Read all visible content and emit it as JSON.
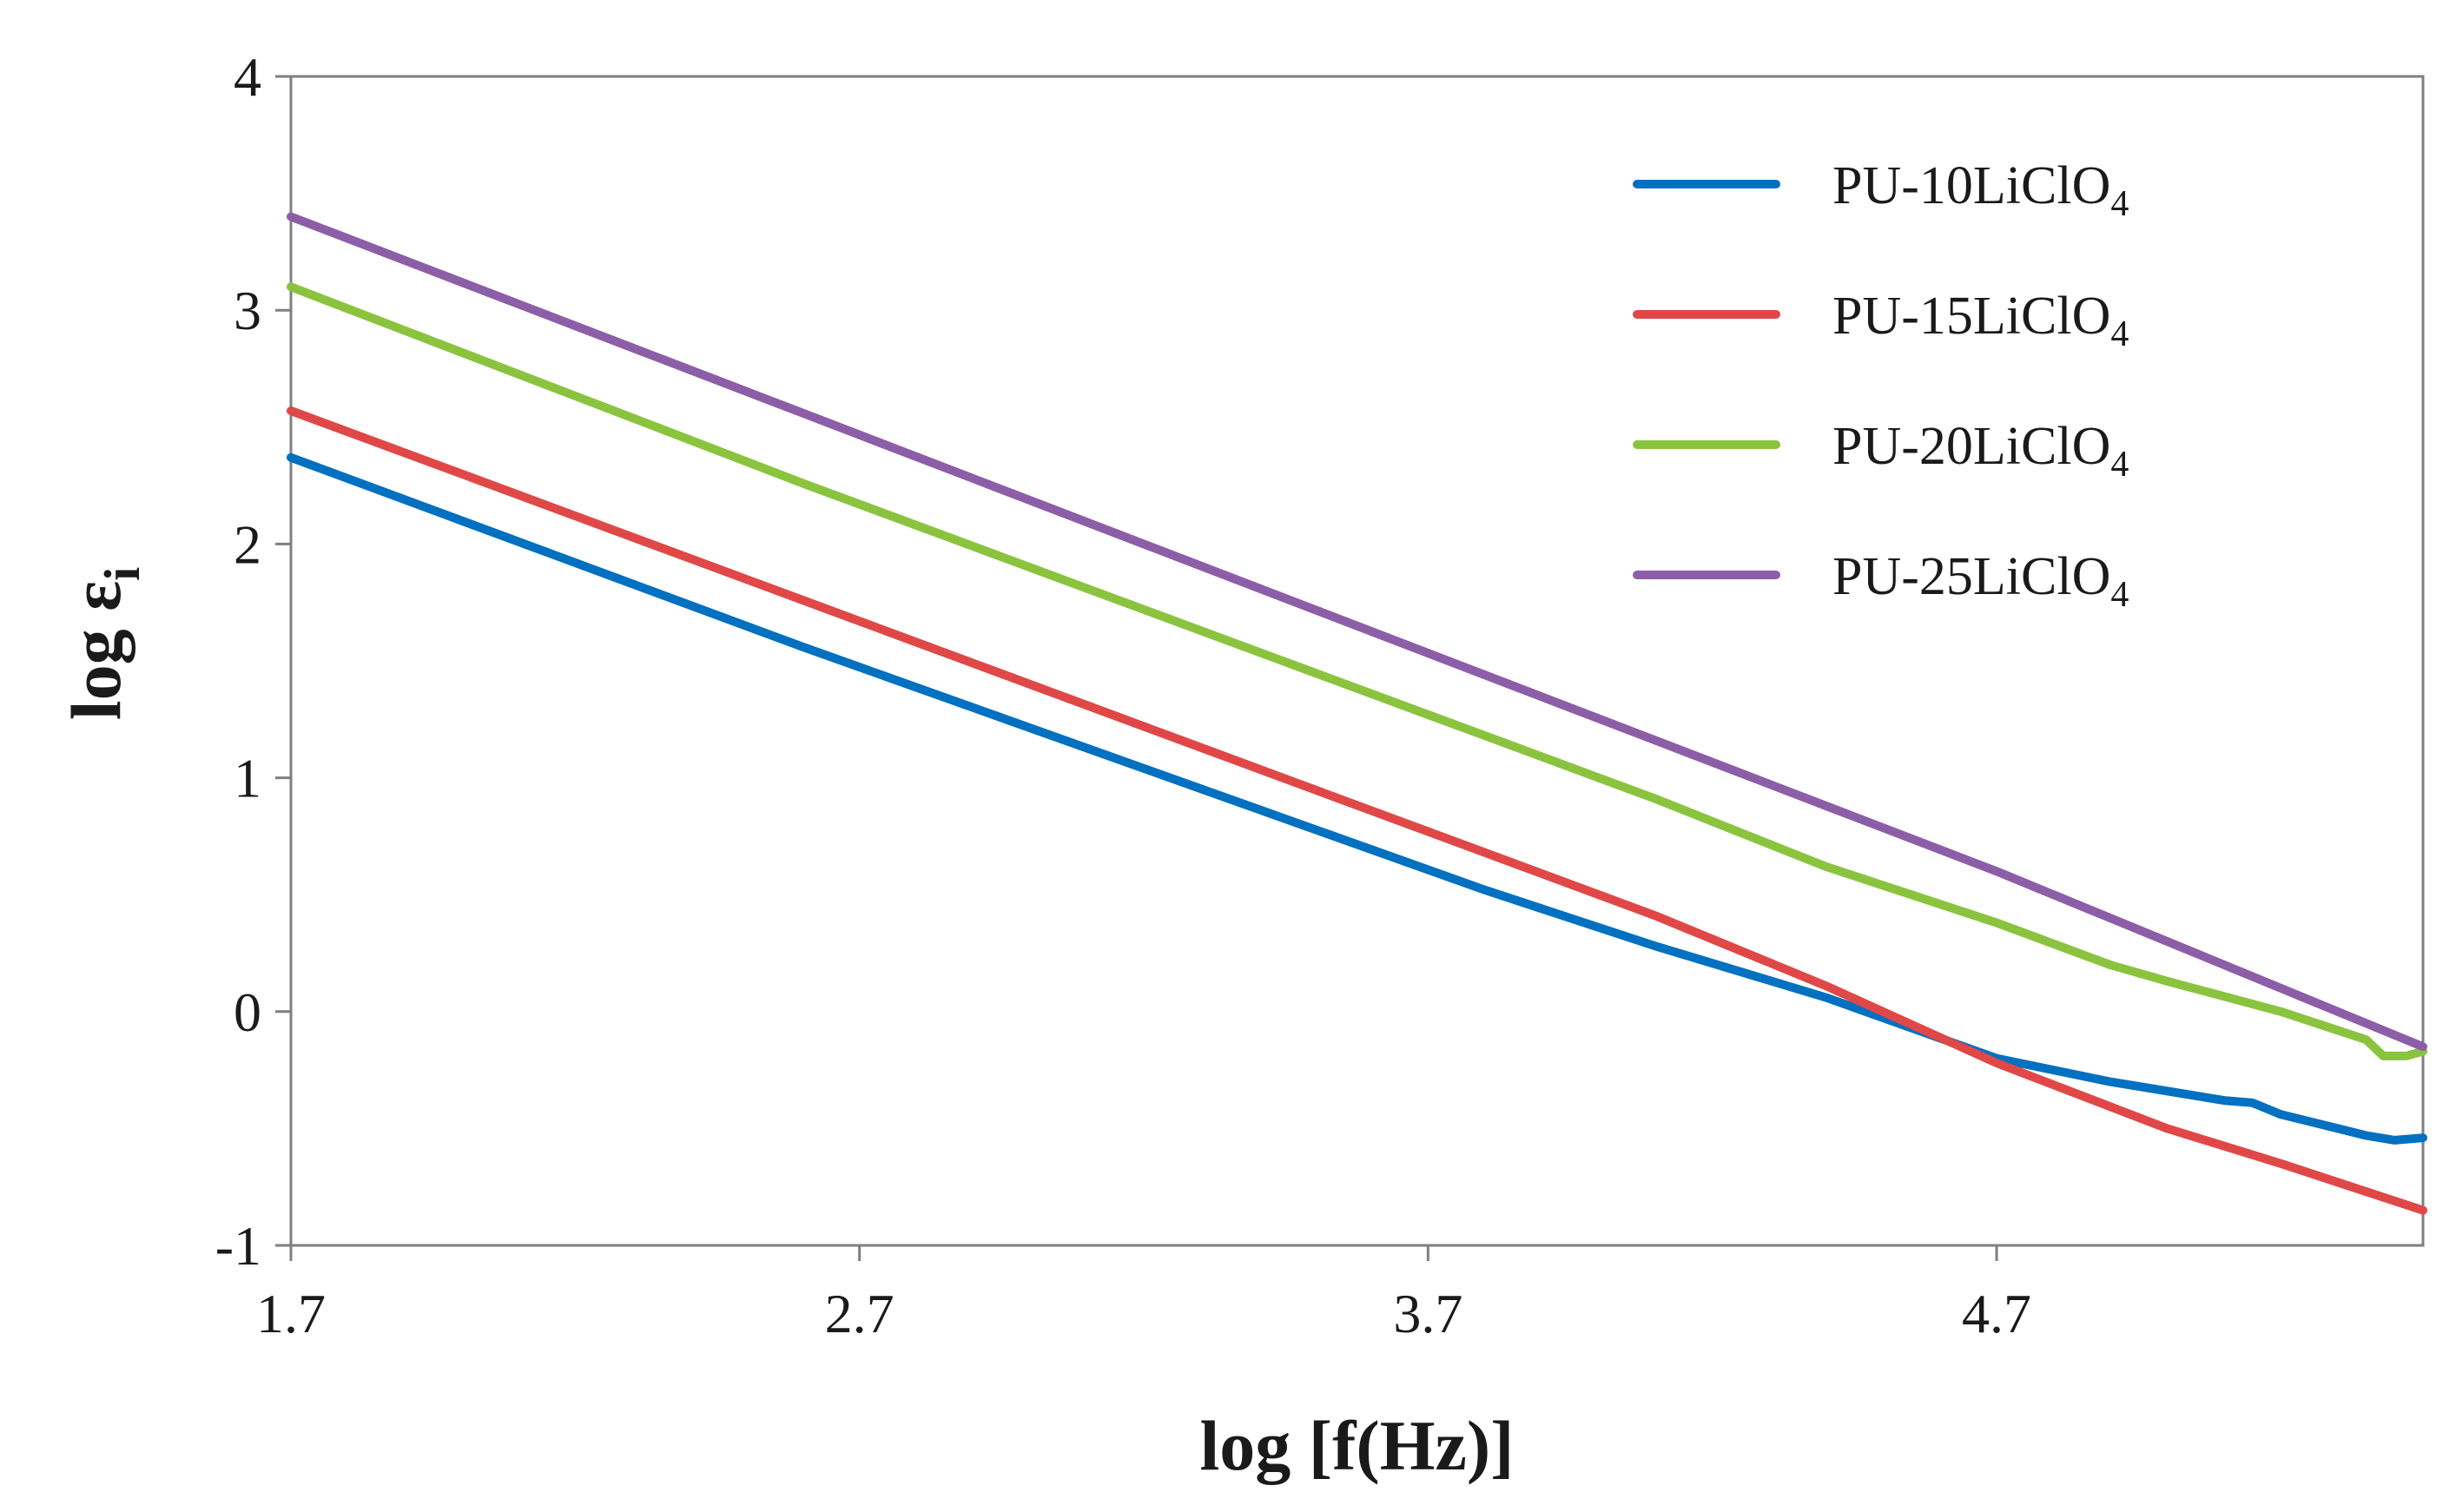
{
  "chart_data": {
    "type": "line",
    "title": "",
    "xlabel": "log [f(Hz)]",
    "ylabel": {
      "main": "log ε",
      "sub": "i"
    },
    "xlim": [
      1.7,
      5.45
    ],
    "ylim": [
      -1,
      4
    ],
    "xticks": [
      1.7,
      2.7,
      3.7,
      4.7
    ],
    "xtick_labels": [
      "1.7",
      "2.7",
      "3.7",
      "4.7"
    ],
    "yticks": [
      -1,
      0,
      1,
      2,
      3,
      4
    ],
    "ytick_labels": [
      "-1",
      "0",
      "1",
      "2",
      "3",
      "4"
    ],
    "grid": false,
    "legend_position": "top-right",
    "series": [
      {
        "name": "PU-10LiClO4",
        "label_main": "PU-10LiClO",
        "label_sub": "4",
        "color": "#0070C0",
        "x": [
          1.7,
          2.0,
          2.3,
          2.6,
          2.9,
          3.2,
          3.5,
          3.8,
          4.1,
          4.4,
          4.7,
          4.9,
          5.0,
          5.1,
          5.15,
          5.2,
          5.3,
          5.35,
          5.4,
          5.45
        ],
        "y": [
          2.37,
          2.1,
          1.83,
          1.56,
          1.3,
          1.04,
          0.78,
          0.52,
          0.28,
          0.06,
          -0.2,
          -0.3,
          -0.34,
          -0.38,
          -0.39,
          -0.44,
          -0.5,
          -0.53,
          -0.55,
          -0.54
        ]
      },
      {
        "name": "PU-15LiClO4",
        "label_main": "PU-15LiClO",
        "label_sub": "4",
        "color": "#E04848",
        "x": [
          1.7,
          2.0,
          2.3,
          2.6,
          2.9,
          3.2,
          3.5,
          3.8,
          4.1,
          4.4,
          4.7,
          5.0,
          5.2,
          5.45
        ],
        "y": [
          2.57,
          2.3,
          2.03,
          1.76,
          1.49,
          1.22,
          0.95,
          0.68,
          0.41,
          0.11,
          -0.22,
          -0.5,
          -0.65,
          -0.85
        ]
      },
      {
        "name": "PU-20LiClO4",
        "label_main": "PU-20LiClO",
        "label_sub": "4",
        "color": "#8AC43F",
        "x": [
          1.7,
          2.0,
          2.3,
          2.6,
          2.9,
          3.2,
          3.5,
          3.8,
          4.1,
          4.4,
          4.7,
          4.9,
          5.0,
          5.2,
          5.35,
          5.38,
          5.42,
          5.45
        ],
        "y": [
          3.1,
          2.82,
          2.54,
          2.26,
          1.99,
          1.72,
          1.45,
          1.18,
          0.91,
          0.62,
          0.38,
          0.2,
          0.13,
          0.0,
          -0.12,
          -0.19,
          -0.19,
          -0.17
        ]
      },
      {
        "name": "PU-25LiClO4",
        "label_main": "PU-25LiClO",
        "label_sub": "4",
        "color": "#8D5EA8",
        "x": [
          1.7,
          2.0,
          2.3,
          2.6,
          2.9,
          3.2,
          3.5,
          3.8,
          4.1,
          4.4,
          4.7,
          5.0,
          5.2,
          5.45
        ],
        "y": [
          3.4,
          3.12,
          2.84,
          2.56,
          2.28,
          2.0,
          1.72,
          1.44,
          1.16,
          0.88,
          0.6,
          0.3,
          0.1,
          -0.15
        ]
      }
    ]
  }
}
